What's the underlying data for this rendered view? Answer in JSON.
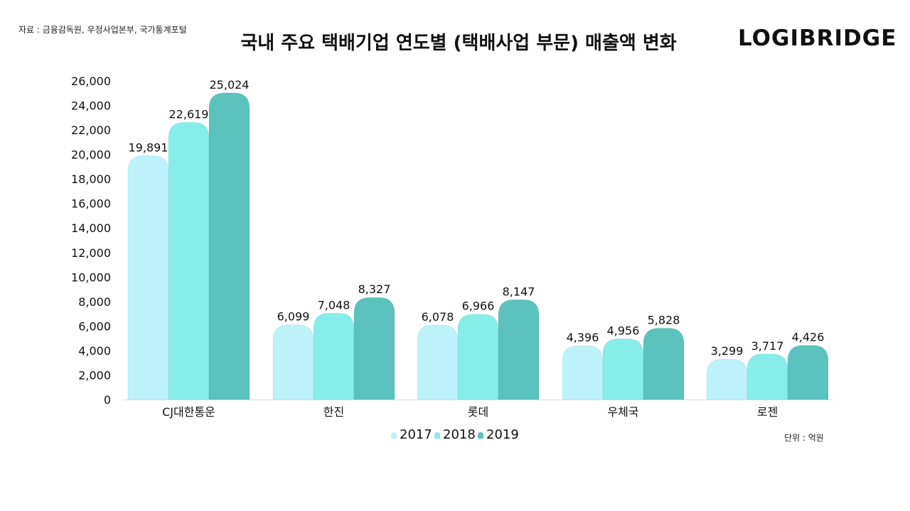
{
  "source": "자료 : 금융감독원, 우정사업본부, 국가통계포털",
  "brand": "LOGIBRIDGE",
  "unit_note": "단위 : 억원",
  "colors": {
    "2017": "#bdf2fb",
    "2018": "#86eee8",
    "2019": "#5bc2bd"
  },
  "chart_data": {
    "type": "bar",
    "title": "국내 주요 택배기업 연도별 (택배사업 부문) 매출액 변화",
    "categories": [
      "CJ대한통운",
      "한진",
      "롯데",
      "우체국",
      "로젠"
    ],
    "series": [
      {
        "name": "2017",
        "values": [
          19891,
          6099,
          6078,
          4396,
          3299
        ]
      },
      {
        "name": "2018",
        "values": [
          22619,
          7048,
          6966,
          4956,
          3717
        ]
      },
      {
        "name": "2019",
        "values": [
          25024,
          8327,
          8147,
          5828,
          4426
        ]
      }
    ],
    "ylim": [
      0,
      26000
    ],
    "yticks": [
      0,
      2000,
      4000,
      6000,
      8000,
      10000,
      12000,
      14000,
      16000,
      18000,
      20000,
      22000,
      24000,
      26000
    ],
    "grid": false,
    "legend": "bottom-center",
    "xlabel": "",
    "ylabel": ""
  }
}
